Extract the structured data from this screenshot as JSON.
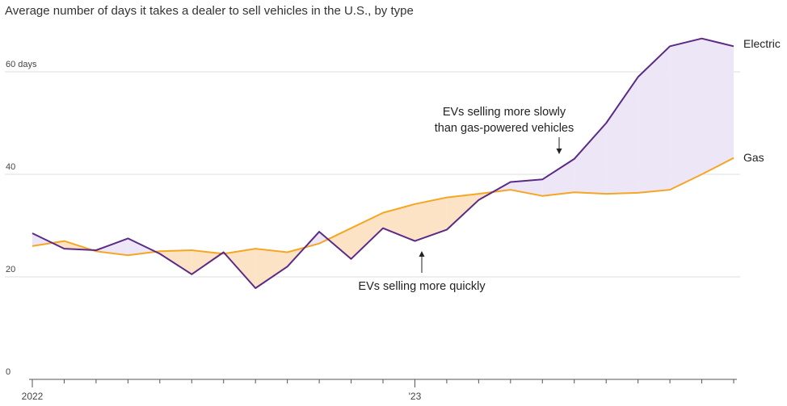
{
  "chart_data": {
    "type": "line",
    "title": "Average number of days it takes a dealer to sell vehicles in the U.S., by type",
    "ylim": [
      0,
      70
    ],
    "yticks": [
      {
        "value": 0,
        "label": "0"
      },
      {
        "value": 20,
        "label": "20"
      },
      {
        "value": 40,
        "label": "40"
      },
      {
        "value": 60,
        "label": "60 days"
      }
    ],
    "xticks": [
      {
        "index": 0,
        "label": "2022"
      },
      {
        "index": 12,
        "label": "'23"
      }
    ],
    "months": 23,
    "series": [
      {
        "name": "Electric",
        "color": "#5b2a86",
        "values": [
          28.5,
          25.5,
          25.2,
          27.5,
          24.5,
          20.5,
          24.8,
          17.8,
          22.0,
          28.8,
          23.5,
          29.5,
          27.0,
          29.2,
          35.0,
          38.5,
          39.0,
          43.0,
          50.0,
          59.0,
          65.0,
          66.5,
          65.0
        ]
      },
      {
        "name": "Gas",
        "color": "#f5a623",
        "values": [
          26.0,
          27.0,
          25.0,
          24.2,
          25.0,
          25.2,
          24.5,
          25.5,
          24.8,
          26.5,
          29.5,
          32.5,
          34.2,
          35.5,
          36.2,
          37.0,
          35.8,
          36.5,
          36.2,
          36.4,
          37.0,
          40.0,
          43.2
        ]
      }
    ],
    "fill_colors": {
      "electric_above": "#ece6f7",
      "gas_above": "#fde3c6"
    },
    "annotations": [
      {
        "id": "slow",
        "lines": [
          "EVs selling more slowly",
          "than gas-powered vehicles"
        ]
      },
      {
        "id": "quick",
        "lines": [
          "EVs selling more quickly"
        ]
      }
    ]
  }
}
